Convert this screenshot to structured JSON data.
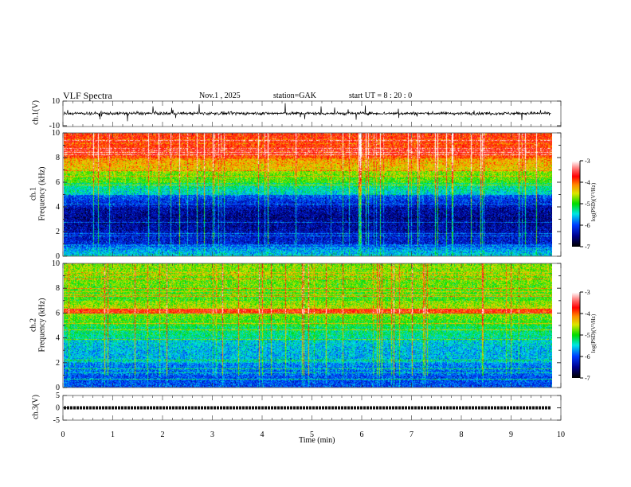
{
  "header": {
    "title": "VLF  Spectra",
    "date": "Nov.1  , 2025",
    "station": "station=GAK",
    "start": "start  UT  =   8  : 20 : 0"
  },
  "chart_data": [
    {
      "type": "line",
      "ylabel": "ch.1(V)",
      "ylim": [
        -10,
        10
      ],
      "yticks": [
        "10",
        "-10"
      ],
      "xlim": [
        0,
        10
      ],
      "data_end_min": 9.8,
      "description_baseline": 0
    },
    {
      "type": "heatmap",
      "ylabel": "ch.1\nFrequency  (kHz)",
      "ylabel_top": "ch.1",
      "ylabel_bottom": "Frequency  (kHz)",
      "ylim": [
        0,
        10
      ],
      "yticks": [
        "0",
        "2",
        "4",
        "6",
        "8",
        "10"
      ],
      "xlim": [
        0,
        10
      ],
      "band_mean_logpsd_per_khz": [
        -5.5,
        -6.3,
        -6.5,
        -6.6,
        -6.4,
        -5.6,
        -5.0,
        -4.5,
        -4.0,
        -3.9
      ],
      "colorbar": {
        "label": "log(PSD)(V²/Hz)",
        "range": [
          -7,
          -3
        ],
        "ticks": [
          "-3",
          "-4",
          "-5",
          "-6",
          "-7"
        ]
      }
    },
    {
      "type": "heatmap",
      "ylabel_top": "ch.2",
      "ylabel_bottom": "Frequency  (kHz)",
      "ylim": [
        0,
        10
      ],
      "yticks": [
        "0",
        "2",
        "4",
        "6",
        "8",
        "10"
      ],
      "xlim": [
        0,
        10
      ],
      "band_mean_logpsd_per_khz": [
        -6.0,
        -6.0,
        -5.7,
        -5.7,
        -5.4,
        -5.1,
        -4.6,
        -5.0,
        -4.9,
        -4.8
      ],
      "colorbar": {
        "label": "log(PSD)(V²/Hz)",
        "range": [
          -7,
          -3
        ],
        "ticks": [
          "-3",
          "-4",
          "-5",
          "-6",
          "-7"
        ]
      }
    },
    {
      "type": "line",
      "ylabel": "ch.3(V)",
      "ylim": [
        -5,
        5
      ],
      "yticks": [
        "5",
        "0",
        "-5"
      ],
      "xlim": [
        0,
        10
      ],
      "level": 0,
      "data_end_min": 9.8
    }
  ],
  "xaxis": {
    "label": "Time  (min)",
    "ticks": [
      "0",
      "1",
      "2",
      "3",
      "4",
      "5",
      "6",
      "7",
      "8",
      "9",
      "10"
    ]
  }
}
